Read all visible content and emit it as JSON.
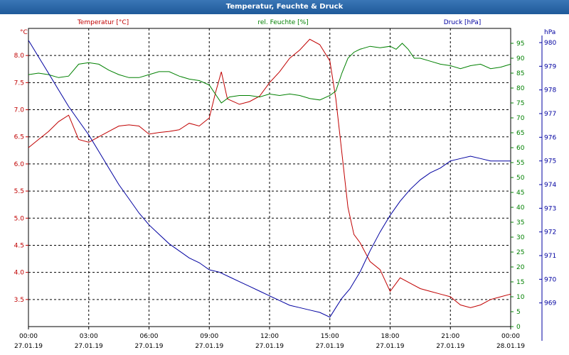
{
  "window_title": "Temperatur, Feuchte & Druck",
  "colors": {
    "temperature": "#c00000",
    "humidity": "#008000",
    "pressure": "#0000a0",
    "grid": "#000000",
    "axis_text": "#000000"
  },
  "chart_data": {
    "type": "line",
    "title": "Temperatur, Feuchte & Druck",
    "x_unit": "hours since 27.01.19 00:00",
    "x_range": [
      0,
      24
    ],
    "x_ticks": [
      {
        "x": 0,
        "time": "00:00",
        "date": "27.01.19"
      },
      {
        "x": 3,
        "time": "03:00",
        "date": "27.01.19"
      },
      {
        "x": 6,
        "time": "06:00",
        "date": "27.01.19"
      },
      {
        "x": 9,
        "time": "09:00",
        "date": "27.01.19"
      },
      {
        "x": 12,
        "time": "12:00",
        "date": "27.01.19"
      },
      {
        "x": 15,
        "time": "15:00",
        "date": "27.01.19"
      },
      {
        "x": 18,
        "time": "18:00",
        "date": "27.01.19"
      },
      {
        "x": 21,
        "time": "21:00",
        "date": "27.01.19"
      },
      {
        "x": 24,
        "time": "00:00",
        "date": "28.01.19"
      }
    ],
    "axes": {
      "temperature": {
        "unit": "°C",
        "label": "Temperatur [°C]",
        "range": [
          3.0,
          8.5
        ],
        "ticks": [
          "3.5",
          "4.0",
          "4.5",
          "5.0",
          "5.5",
          "6.0",
          "6.5",
          "7.0",
          "7.5",
          "8.0"
        ]
      },
      "humidity": {
        "unit": "%",
        "label": "rel. Feuchte [%]",
        "range": [
          0,
          100
        ],
        "ticks": [
          "0",
          "5",
          "10",
          "15",
          "20",
          "25",
          "30",
          "35",
          "40",
          "45",
          "50",
          "55",
          "60",
          "65",
          "70",
          "75",
          "80",
          "85",
          "90",
          "95"
        ]
      },
      "pressure": {
        "unit": "hPa",
        "label": "Druck [hPa]",
        "range": [
          968.0,
          980.6
        ],
        "ticks": [
          "969",
          "970",
          "971",
          "972",
          "973",
          "974",
          "975",
          "976",
          "977",
          "978",
          "979",
          "980"
        ]
      }
    },
    "series": [
      {
        "name": "Temperatur [°C]",
        "axis": "temperature",
        "color": "#c00000",
        "x": [
          0,
          0.5,
          1,
          1.5,
          2,
          2.5,
          3,
          3.5,
          4,
          4.5,
          5,
          5.5,
          6,
          6.5,
          7,
          7.5,
          8,
          8.5,
          9,
          9.3,
          9.6,
          9.9,
          10.2,
          10.5,
          11,
          11.5,
          12,
          12.5,
          13,
          13.5,
          14,
          14.5,
          15,
          15.3,
          15.6,
          15.9,
          16.2,
          16.5,
          17,
          17.5,
          18,
          18.5,
          19,
          19.5,
          20,
          20.5,
          21,
          21.5,
          22,
          22.5,
          23,
          23.5,
          24
        ],
        "values": [
          6.3,
          6.45,
          6.6,
          6.78,
          6.9,
          6.45,
          6.4,
          6.5,
          6.6,
          6.7,
          6.72,
          6.7,
          6.55,
          6.58,
          6.6,
          6.63,
          6.75,
          6.7,
          6.85,
          7.3,
          7.7,
          7.2,
          7.15,
          7.1,
          7.15,
          7.25,
          7.5,
          7.7,
          7.95,
          8.1,
          8.3,
          8.2,
          7.9,
          7.2,
          6.2,
          5.2,
          4.7,
          4.55,
          4.2,
          4.05,
          3.65,
          3.9,
          3.8,
          3.7,
          3.65,
          3.6,
          3.55,
          3.4,
          3.35,
          3.4,
          3.5,
          3.55,
          3.6
        ]
      },
      {
        "name": "rel. Feuchte [%]",
        "axis": "humidity",
        "color": "#008000",
        "x": [
          0,
          0.5,
          1,
          1.5,
          2,
          2.5,
          3,
          3.5,
          4,
          4.5,
          5,
          5.5,
          6,
          6.5,
          7,
          7.5,
          8,
          8.5,
          9,
          9.3,
          9.6,
          10,
          10.5,
          11,
          11.5,
          12,
          12.5,
          13,
          13.5,
          14,
          14.5,
          15,
          15.3,
          15.6,
          15.9,
          16.2,
          16.5,
          17,
          17.5,
          18,
          18.3,
          18.6,
          18.9,
          19.2,
          19.5,
          20,
          20.5,
          21,
          21.5,
          22,
          22.5,
          23,
          23.5,
          24
        ],
        "values": [
          84.5,
          85,
          84.5,
          83.5,
          84,
          88,
          88.5,
          88,
          86,
          84.5,
          83.5,
          83.5,
          84.5,
          85.5,
          85.5,
          84,
          83,
          82.5,
          81,
          78,
          75,
          77,
          77.5,
          77.5,
          77,
          78,
          77.5,
          78,
          77.5,
          76.5,
          76,
          77.5,
          79,
          85,
          90,
          92,
          93,
          94,
          93.5,
          94,
          93,
          95,
          93,
          90,
          90,
          89,
          88,
          87.5,
          86.5,
          87.5,
          88,
          86.5,
          87,
          88
        ]
      },
      {
        "name": "Druck [hPa]",
        "axis": "pressure",
        "color": "#0000a0",
        "x": [
          0,
          0.5,
          1,
          1.5,
          2,
          2.5,
          3,
          3.5,
          4,
          4.5,
          5,
          5.5,
          6,
          6.5,
          7,
          7.5,
          8,
          8.5,
          9,
          9.5,
          10,
          10.5,
          11,
          11.5,
          12,
          12.5,
          13,
          13.5,
          14,
          14.5,
          15,
          15.3,
          15.6,
          16,
          16.5,
          17,
          17.5,
          18,
          18.5,
          19,
          19.5,
          20,
          20.5,
          21,
          21.5,
          22,
          22.5,
          23,
          23.5,
          24
        ],
        "values": [
          980.1,
          979.4,
          978.7,
          978.0,
          977.3,
          976.7,
          976.1,
          975.4,
          974.7,
          974.0,
          973.4,
          972.8,
          972.3,
          971.9,
          971.5,
          971.2,
          970.9,
          970.7,
          970.4,
          970.3,
          970.1,
          969.9,
          969.7,
          969.5,
          969.3,
          969.1,
          968.9,
          968.8,
          968.7,
          968.6,
          968.4,
          968.8,
          969.2,
          969.6,
          970.3,
          971.2,
          972.0,
          972.7,
          973.3,
          973.8,
          974.2,
          974.5,
          974.7,
          975.0,
          975.1,
          975.2,
          975.1,
          975.0,
          975.0,
          975.0
        ]
      }
    ]
  }
}
